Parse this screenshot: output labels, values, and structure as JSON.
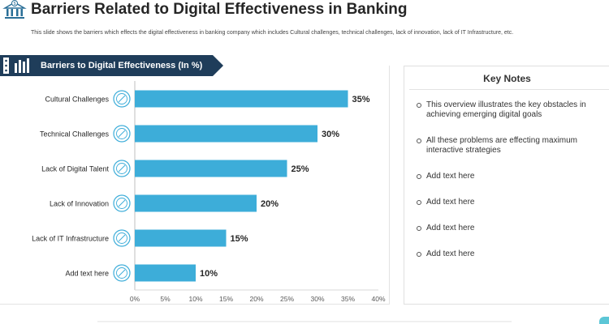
{
  "header": {
    "title": "Barriers Related to Digital Effectiveness in Banking",
    "subtitle": "This slide shows the barriers which effects the digital effectiveness in banking company which includes Cultural challenges, technical challenges, lack of innovation, lack of IT Infrastructure, etc."
  },
  "banner": {
    "label": "Barriers to Digital Effectiveness (In %)"
  },
  "notes": {
    "title": "Key Notes",
    "items": [
      "This overview illustrates the key obstacles in achieving emerging digital goals",
      "All these problems are effecting maximum interactive strategies",
      "Add text here",
      "Add text here",
      "Add text here",
      "Add text here"
    ]
  },
  "colors": {
    "bar": "#3dadd9",
    "banner": "#1f3d5a",
    "icon": "#3dadd9"
  },
  "chart_data": {
    "type": "bar",
    "orientation": "horizontal",
    "categories": [
      "Cultural Challenges",
      "Technical Challenges",
      "Lack of Digital Talent",
      "Lack of Innovation",
      "Lack of IT Infrastructure",
      "Add text here"
    ],
    "values": [
      35,
      30,
      25,
      20,
      15,
      10
    ],
    "value_labels": [
      "35%",
      "30%",
      "25%",
      "20%",
      "15%",
      "10%"
    ],
    "xlim": [
      0,
      40
    ],
    "xticks": [
      "0%",
      "5%",
      "10%",
      "15%",
      "20%",
      "25%",
      "30%",
      "35%",
      "40%"
    ],
    "grid": false
  }
}
